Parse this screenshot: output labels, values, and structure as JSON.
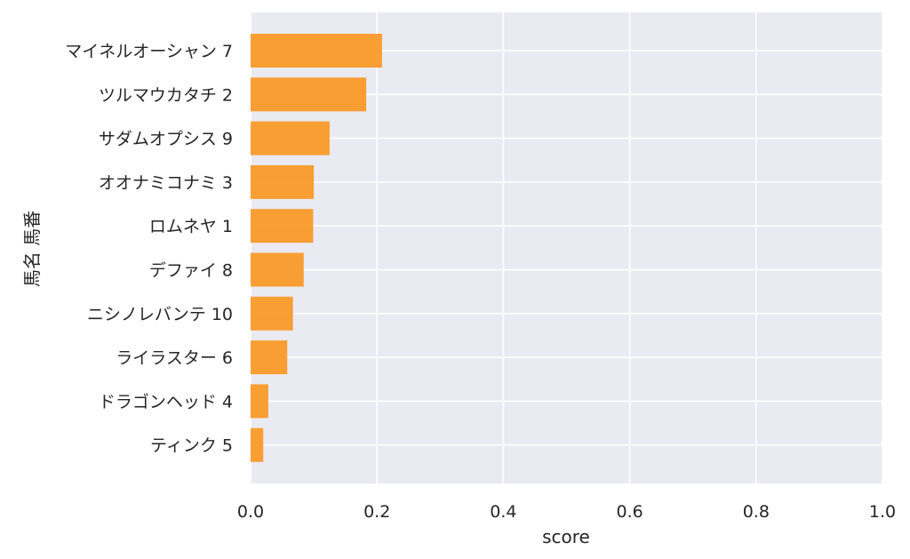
{
  "chart_data": {
    "type": "bar",
    "orientation": "horizontal",
    "title": "",
    "xlabel": "score",
    "ylabel": "馬名 馬番",
    "xlim": [
      0,
      1.0
    ],
    "x_ticks": [
      "0.0",
      "0.2",
      "0.4",
      "0.6",
      "0.8",
      "1.0"
    ],
    "x_tick_values": [
      0,
      0.2,
      0.4,
      0.6,
      0.8,
      1.0
    ],
    "grid": true,
    "bar_color": "#f99a28",
    "plot_background": "#eaeaf2",
    "grid_color": "#ffffff",
    "categories": [
      "マイネルオーシャン 7",
      "ツルマウカタチ 2",
      "サダムオプシス 9",
      "オオナミコナミ 3",
      "ロムネヤ 1",
      "デファイ 8",
      "ニシノレバンテ 10",
      "ライラスター 6",
      "ドラゴンヘッド 4",
      "ティンク 5"
    ],
    "values": [
      0.208,
      0.183,
      0.125,
      0.1,
      0.099,
      0.084,
      0.067,
      0.058,
      0.028,
      0.02
    ]
  }
}
